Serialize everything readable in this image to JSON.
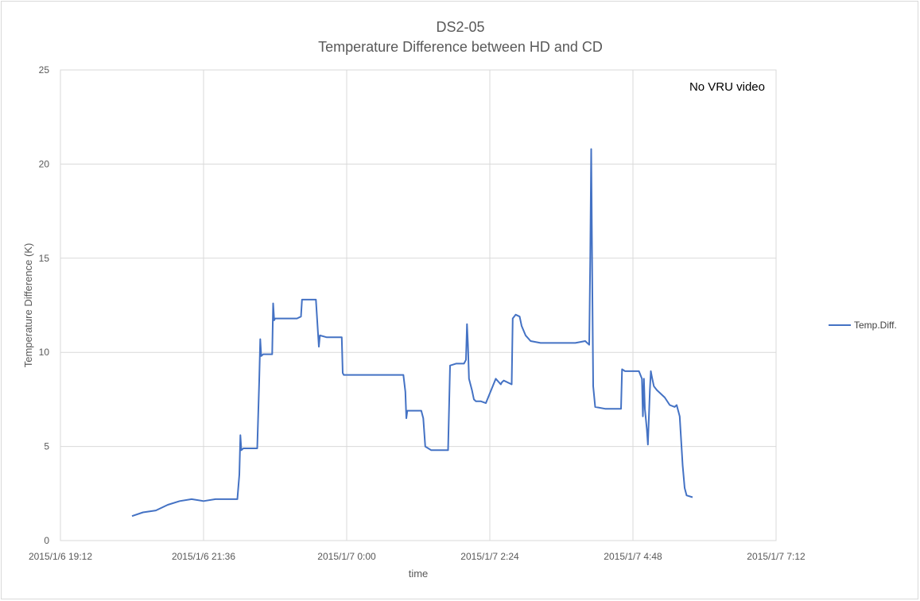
{
  "chart_data": {
    "type": "line",
    "title": "DS2-05",
    "subtitle": "Temperature Difference between HD and CD",
    "xlabel": "time",
    "ylabel": "Temperature Difference (K)",
    "annotation": "No VRU video",
    "xlim": [
      "2015/1/6 19:12",
      "2015/1/7 7:12"
    ],
    "ylim": [
      0,
      25
    ],
    "grid": true,
    "legend_position": "right",
    "x_tick_labels": [
      "2015/1/6 19:12",
      "2015/1/6 21:36",
      "2015/1/7 0:00",
      "2015/1/7 2:24",
      "2015/1/7 4:48",
      "2015/1/7 7:12"
    ],
    "y_tick_labels": [
      "0",
      "5",
      "10",
      "15",
      "20",
      "25"
    ],
    "series": [
      {
        "name": "Temp.Diff.",
        "color": "#4472c4",
        "x": [
          "2015/1/6 20:24",
          "2015/1/6 20:35",
          "2015/1/6 20:48",
          "2015/1/6 21:00",
          "2015/1/6 21:12",
          "2015/1/6 21:24",
          "2015/1/6 21:36",
          "2015/1/6 21:48",
          "2015/1/6 22:00",
          "2015/1/6 22:10",
          "2015/1/6 22:12",
          "2015/1/6 22:13",
          "2015/1/6 22:14",
          "2015/1/6 22:16",
          "2015/1/6 22:20",
          "2015/1/6 22:30",
          "2015/1/6 22:32",
          "2015/1/6 22:33",
          "2015/1/6 22:34",
          "2015/1/6 22:36",
          "2015/1/6 22:45",
          "2015/1/6 22:46",
          "2015/1/6 22:47",
          "2015/1/6 22:48",
          "2015/1/6 22:50",
          "2015/1/6 23:00",
          "2015/1/6 23:10",
          "2015/1/6 23:14",
          "2015/1/6 23:15",
          "2015/1/6 23:25",
          "2015/1/6 23:29",
          "2015/1/6 23:31",
          "2015/1/6 23:32",
          "2015/1/6 23:33",
          "2015/1/6 23:40",
          "2015/1/6 23:55",
          "2015/1/6 23:56",
          "2015/1/6 23:57",
          "2015/1/7 0:10",
          "2015/1/7 0:30",
          "2015/1/7 0:55",
          "2015/1/7 0:57",
          "2015/1/7 0:59",
          "2015/1/7 1:00",
          "2015/1/7 1:01",
          "2015/1/7 1:15",
          "2015/1/7 1:17",
          "2015/1/7 1:19",
          "2015/1/7 1:25",
          "2015/1/7 1:30",
          "2015/1/7 1:42",
          "2015/1/7 1:44",
          "2015/1/7 1:50",
          "2015/1/7 1:58",
          "2015/1/7 2:00",
          "2015/1/7 2:01",
          "2015/1/7 2:02",
          "2015/1/7 2:03",
          "2015/1/7 2:06",
          "2015/1/7 2:08",
          "2015/1/7 2:10",
          "2015/1/7 2:12",
          "2015/1/7 2:15",
          "2015/1/7 2:20",
          "2015/1/7 2:30",
          "2015/1/7 2:35",
          "2015/1/7 2:36",
          "2015/1/7 2:38",
          "2015/1/7 2:46",
          "2015/1/7 2:47",
          "2015/1/7 2:50",
          "2015/1/7 2:54",
          "2015/1/7 2:56",
          "2015/1/7 3:00",
          "2015/1/7 3:05",
          "2015/1/7 3:15",
          "2015/1/7 3:30",
          "2015/1/7 3:50",
          "2015/1/7 4:00",
          "2015/1/7 4:04",
          "2015/1/7 4:05",
          "2015/1/7 4:06",
          "2015/1/7 4:07",
          "2015/1/7 4:08",
          "2015/1/7 4:10",
          "2015/1/7 4:20",
          "2015/1/7 4:25",
          "2015/1/7 4:36",
          "2015/1/7 4:37",
          "2015/1/7 4:40",
          "2015/1/7 4:50",
          "2015/1/7 4:54",
          "2015/1/7 4:57",
          "2015/1/7 4:58",
          "2015/1/7 4:59",
          "2015/1/7 5:00",
          "2015/1/7 5:02",
          "2015/1/7 5:03",
          "2015/1/7 5:05",
          "2015/1/7 5:06",
          "2015/1/7 5:07",
          "2015/1/7 5:09",
          "2015/1/7 5:12",
          "2015/1/7 5:20",
          "2015/1/7 5:25",
          "2015/1/7 5:30",
          "2015/1/7 5:32",
          "2015/1/7 5:35",
          "2015/1/7 5:38",
          "2015/1/7 5:40",
          "2015/1/7 5:42",
          "2015/1/7 5:48"
        ],
        "y": [
          1.3,
          1.5,
          1.6,
          1.9,
          2.1,
          2.2,
          2.1,
          2.2,
          2.2,
          2.2,
          3.5,
          5.6,
          4.8,
          4.9,
          4.9,
          4.9,
          8.5,
          10.7,
          9.8,
          9.9,
          9.9,
          12.6,
          11.7,
          11.8,
          11.8,
          11.8,
          11.8,
          11.9,
          12.8,
          12.8,
          12.8,
          11.1,
          10.3,
          10.9,
          10.8,
          10.8,
          8.9,
          8.8,
          8.8,
          8.8,
          8.8,
          8.8,
          7.9,
          6.5,
          6.9,
          6.9,
          6.5,
          5.0,
          4.8,
          4.8,
          4.8,
          9.3,
          9.4,
          9.4,
          9.6,
          11.5,
          10.4,
          8.6,
          8.0,
          7.5,
          7.4,
          7.4,
          7.4,
          7.3,
          8.6,
          8.3,
          8.4,
          8.5,
          8.3,
          11.8,
          12.0,
          11.9,
          11.4,
          10.9,
          10.6,
          10.5,
          10.5,
          10.5,
          10.6,
          10.4,
          15.0,
          20.8,
          14.0,
          8.2,
          7.1,
          7.0,
          7.0,
          7.0,
          9.1,
          9.0,
          9.0,
          9.0,
          8.6,
          6.6,
          8.6,
          7.0,
          5.9,
          5.1,
          8.0,
          9.0,
          8.7,
          8.2,
          8.0,
          7.6,
          7.2,
          7.1,
          7.2,
          6.6,
          4.0,
          2.8,
          2.4,
          2.3
        ]
      }
    ]
  }
}
